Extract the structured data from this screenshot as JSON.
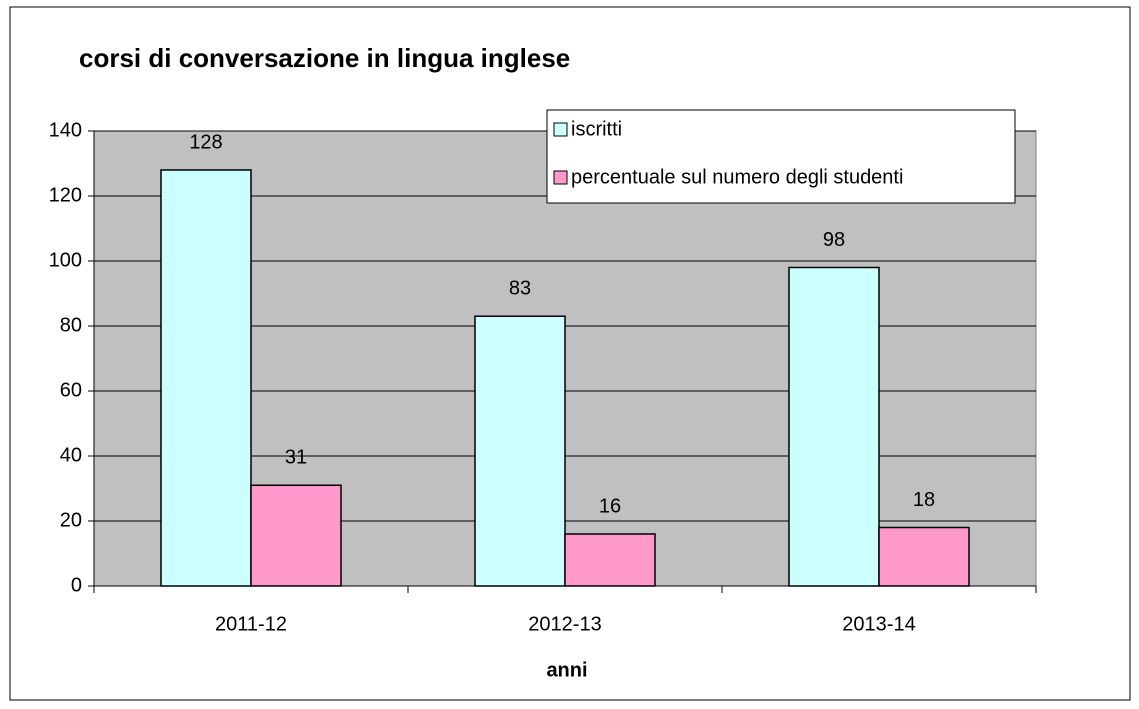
{
  "chart_data": {
    "type": "bar",
    "title": "corsi di conversazione in lingua inglese",
    "x_label": "anni",
    "categories": [
      "2011-12",
      "2012-13",
      "2013-14"
    ],
    "series": [
      {
        "name": "iscritti",
        "color": "#ccffff",
        "values": [
          128,
          83,
          98
        ]
      },
      {
        "name": "percentuale sul numero degli studenti",
        "color": "#ff99cc",
        "values": [
          31,
          16,
          18
        ]
      }
    ],
    "ylim": [
      0,
      140
    ],
    "yticks": [
      0,
      20,
      40,
      60,
      80,
      100,
      120,
      140
    ],
    "grid": true,
    "plot_background": "#c0c0c0",
    "legend": "upper right"
  }
}
